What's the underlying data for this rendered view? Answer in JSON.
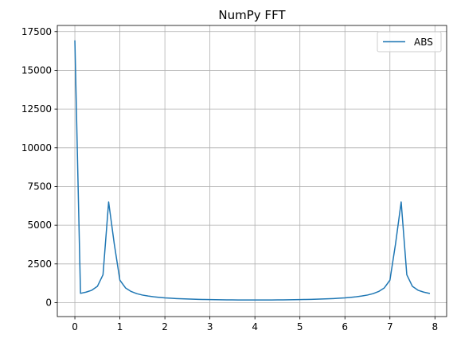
{
  "chart_data": {
    "type": "line",
    "title": "NumPy FFT",
    "xlabel": "",
    "ylabel": "",
    "xlim": [
      -0.39,
      8.26
    ],
    "ylim": [
      -900,
      17900
    ],
    "xticks": [
      0,
      1,
      2,
      3,
      4,
      5,
      6,
      7,
      8
    ],
    "yticks": [
      0,
      2500,
      5000,
      7500,
      10000,
      12500,
      15000,
      17500
    ],
    "grid": true,
    "legend_position": "top-right",
    "colors": {
      "series": "#1f77b4",
      "grid": "#b0b0b0",
      "axis": "#000000"
    },
    "series": [
      {
        "name": "ABS",
        "x": [
          0,
          0.125,
          0.25,
          0.375,
          0.5,
          0.625,
          0.75,
          0.875,
          1.0,
          1.125,
          1.25,
          1.375,
          1.5,
          1.625,
          1.75,
          1.875,
          2.0,
          2.125,
          2.25,
          2.375,
          2.5,
          2.625,
          2.75,
          2.875,
          3.0,
          3.125,
          3.25,
          3.375,
          3.5,
          3.625,
          3.75,
          3.875,
          4.0,
          4.125,
          4.25,
          4.375,
          4.5,
          4.625,
          4.75,
          4.875,
          5.0,
          5.125,
          5.25,
          5.375,
          5.5,
          5.625,
          5.75,
          5.875,
          6.0,
          6.125,
          6.25,
          6.375,
          6.5,
          6.625,
          6.75,
          6.875,
          7.0,
          7.125,
          7.25,
          7.375,
          7.5,
          7.625,
          7.75,
          7.875
        ],
        "y": [
          16900,
          600,
          680,
          800,
          1050,
          1800,
          6500,
          3800,
          1450,
          950,
          720,
          580,
          490,
          430,
          380,
          340,
          305,
          285,
          265,
          248,
          235,
          222,
          212,
          204,
          197,
          191,
          186,
          182,
          178,
          175,
          173,
          171,
          170,
          171,
          173,
          175,
          178,
          182,
          186,
          191,
          197,
          204,
          212,
          222,
          235,
          248,
          265,
          285,
          305,
          340,
          380,
          430,
          490,
          580,
          720,
          950,
          1450,
          3800,
          6500,
          1800,
          1050,
          800,
          680,
          600
        ]
      }
    ]
  }
}
